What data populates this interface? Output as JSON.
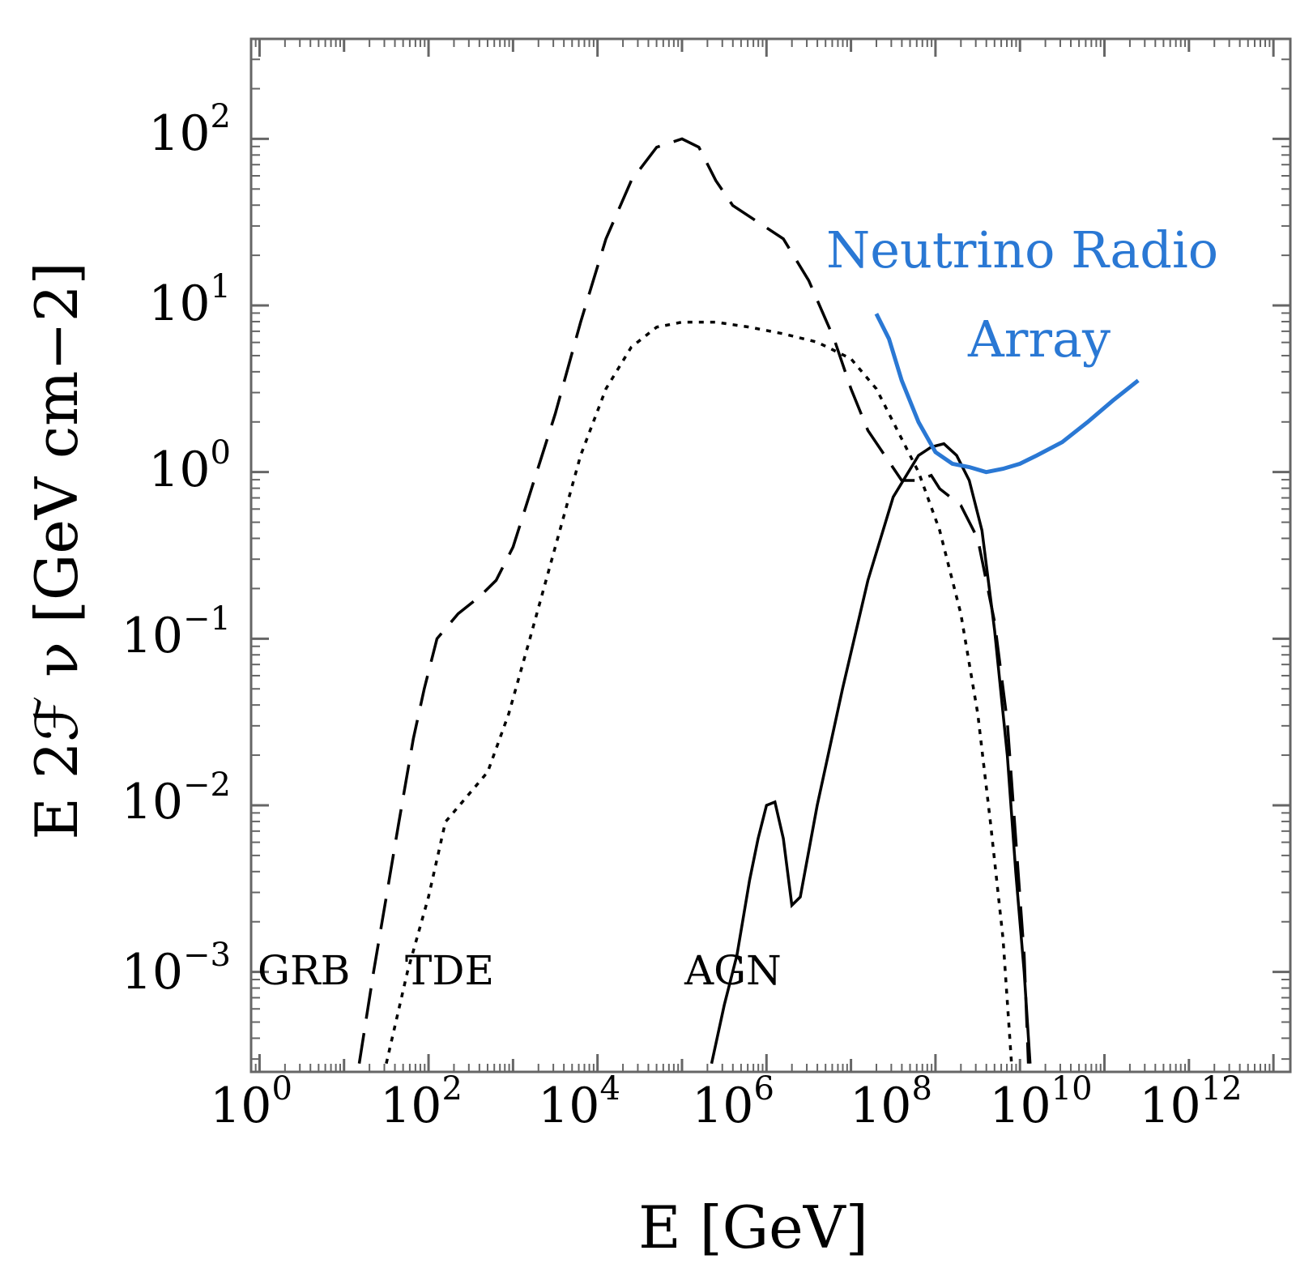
{
  "chart_data": {
    "type": "line",
    "scale": {
      "x": "log10",
      "y": "log10"
    },
    "xlabel": "E [GeV]",
    "ylabel": "E 2ℱ ν [GeV cm−2]",
    "xlim_log10": [
      -0.1,
      12.2
    ],
    "ylim_log10": [
      -3.6,
      2.6
    ],
    "x_ticks": [
      {
        "base": "10",
        "exp": "0",
        "log": 0
      },
      {
        "base": "10",
        "exp": "2",
        "log": 2
      },
      {
        "base": "10",
        "exp": "4",
        "log": 4
      },
      {
        "base": "10",
        "exp": "6",
        "log": 6
      },
      {
        "base": "10",
        "exp": "8",
        "log": 8
      },
      {
        "base": "10",
        "exp": "10",
        "log": 10
      },
      {
        "base": "10",
        "exp": "12",
        "log": 12
      }
    ],
    "y_ticks": [
      {
        "base": "10",
        "exp": "2",
        "log": 2
      },
      {
        "base": "10",
        "exp": "1",
        "log": 1
      },
      {
        "base": "10",
        "exp": "0",
        "log": 0
      },
      {
        "base": "10",
        "exp": "−1",
        "log": -1
      },
      {
        "base": "10",
        "exp": "−2",
        "log": -2
      },
      {
        "base": "10",
        "exp": "−3",
        "log": -3
      }
    ],
    "series": [
      {
        "name": "GRB",
        "style": "dashed",
        "color": "#000000",
        "points_log10": [
          [
            1.18,
            -3.55
          ],
          [
            1.35,
            -3.0
          ],
          [
            1.5,
            -2.55
          ],
          [
            1.65,
            -2.1
          ],
          [
            1.82,
            -1.6
          ],
          [
            1.95,
            -1.3
          ],
          [
            2.1,
            -1.0
          ],
          [
            2.35,
            -0.85
          ],
          [
            2.6,
            -0.75
          ],
          [
            2.8,
            -0.65
          ],
          [
            3.0,
            -0.45
          ],
          [
            3.25,
            -0.05
          ],
          [
            3.5,
            0.35
          ],
          [
            3.8,
            0.9
          ],
          [
            4.1,
            1.4
          ],
          [
            4.4,
            1.75
          ],
          [
            4.7,
            1.95
          ],
          [
            5.0,
            2.0
          ],
          [
            5.2,
            1.95
          ],
          [
            5.4,
            1.75
          ],
          [
            5.6,
            1.6
          ],
          [
            5.9,
            1.5
          ],
          [
            6.2,
            1.4
          ],
          [
            6.5,
            1.15
          ],
          [
            6.8,
            0.8
          ],
          [
            7.0,
            0.5
          ],
          [
            7.2,
            0.25
          ],
          [
            7.4,
            0.1
          ],
          [
            7.6,
            -0.05
          ],
          [
            7.8,
            -0.05
          ],
          [
            7.95,
            -0.02
          ],
          [
            8.05,
            -0.1
          ],
          [
            8.3,
            -0.2
          ],
          [
            8.5,
            -0.4
          ],
          [
            8.7,
            -0.9
          ],
          [
            8.85,
            -1.5
          ],
          [
            8.95,
            -2.2
          ],
          [
            9.05,
            -2.9
          ],
          [
            9.1,
            -3.55
          ]
        ]
      },
      {
        "name": "TDE",
        "style": "dotted",
        "color": "#000000",
        "points_log10": [
          [
            1.5,
            -3.55
          ],
          [
            1.75,
            -3.0
          ],
          [
            2.0,
            -2.55
          ],
          [
            2.2,
            -2.1
          ],
          [
            2.45,
            -1.95
          ],
          [
            2.7,
            -1.8
          ],
          [
            2.95,
            -1.45
          ],
          [
            3.2,
            -1.0
          ],
          [
            3.5,
            -0.45
          ],
          [
            3.8,
            0.1
          ],
          [
            4.1,
            0.5
          ],
          [
            4.4,
            0.75
          ],
          [
            4.7,
            0.87
          ],
          [
            5.0,
            0.9
          ],
          [
            5.4,
            0.9
          ],
          [
            5.8,
            0.87
          ],
          [
            6.2,
            0.83
          ],
          [
            6.6,
            0.78
          ],
          [
            7.0,
            0.68
          ],
          [
            7.3,
            0.5
          ],
          [
            7.55,
            0.25
          ],
          [
            7.8,
            0.0
          ],
          [
            8.05,
            -0.35
          ],
          [
            8.3,
            -0.85
          ],
          [
            8.5,
            -1.45
          ],
          [
            8.65,
            -2.1
          ],
          [
            8.8,
            -2.8
          ],
          [
            8.9,
            -3.55
          ]
        ]
      },
      {
        "name": "AGN",
        "style": "solid",
        "color": "#000000",
        "points_log10": [
          [
            5.35,
            -3.55
          ],
          [
            5.5,
            -3.2
          ],
          [
            5.65,
            -2.9
          ],
          [
            5.8,
            -2.45
          ],
          [
            5.9,
            -2.2
          ],
          [
            6.0,
            -2.0
          ],
          [
            6.1,
            -1.98
          ],
          [
            6.2,
            -2.2
          ],
          [
            6.3,
            -2.6
          ],
          [
            6.4,
            -2.55
          ],
          [
            6.6,
            -2.0
          ],
          [
            6.9,
            -1.3
          ],
          [
            7.2,
            -0.65
          ],
          [
            7.5,
            -0.15
          ],
          [
            7.8,
            0.1
          ],
          [
            7.95,
            0.15
          ],
          [
            8.1,
            0.17
          ],
          [
            8.25,
            0.1
          ],
          [
            8.4,
            -0.05
          ],
          [
            8.55,
            -0.35
          ],
          [
            8.7,
            -0.95
          ],
          [
            8.85,
            -1.7
          ],
          [
            8.95,
            -2.4
          ],
          [
            9.05,
            -3.0
          ],
          [
            9.12,
            -3.55
          ]
        ]
      },
      {
        "name": "Neutrino Radio Array",
        "style": "solid",
        "color": "#2a78d4",
        "points_log10": [
          [
            7.3,
            0.95
          ],
          [
            7.45,
            0.8
          ],
          [
            7.6,
            0.55
          ],
          [
            7.8,
            0.3
          ],
          [
            8.0,
            0.12
          ],
          [
            8.2,
            0.05
          ],
          [
            8.4,
            0.03
          ],
          [
            8.6,
            0.0
          ],
          [
            8.8,
            0.02
          ],
          [
            9.0,
            0.05
          ],
          [
            9.2,
            0.1
          ],
          [
            9.5,
            0.18
          ],
          [
            9.8,
            0.3
          ],
          [
            10.1,
            0.43
          ],
          [
            10.4,
            0.55
          ]
        ]
      }
    ],
    "annotations": [
      {
        "text": "GRB"
      },
      {
        "text": "TDE"
      },
      {
        "text": "AGN"
      },
      {
        "text": "Neutrino Radio"
      },
      {
        "text": "Array"
      }
    ]
  }
}
